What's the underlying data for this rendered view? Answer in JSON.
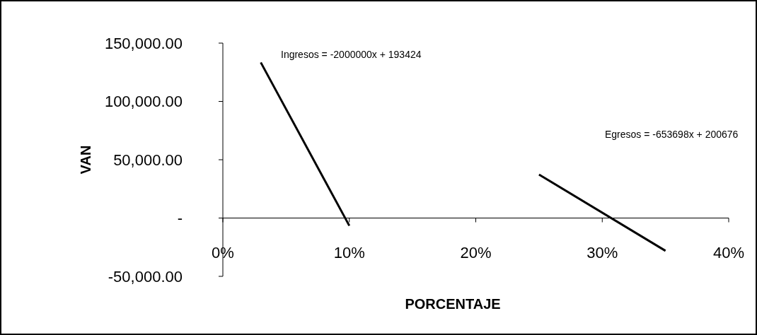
{
  "chart_data": {
    "type": "line",
    "xlabel": "PORCENTAJE",
    "ylabel": "VAN",
    "series": [
      {
        "color": "#000000",
        "x": [
          0.03,
          0.1
        ],
        "values": [
          133400,
          -6600
        ]
      },
      {
        "color": "#000000",
        "x": [
          0.25,
          0.35
        ],
        "values": [
          37300,
          -28100
        ]
      }
    ],
    "xlim": [
      0,
      0.4
    ],
    "xticks": [
      {
        "value": 0,
        "label": "0%"
      },
      {
        "value": 0.1,
        "label": "10%"
      },
      {
        "value": 0.2,
        "label": "20%"
      },
      {
        "value": 0.3,
        "label": "30%"
      },
      {
        "value": 0.4,
        "label": "40%"
      }
    ],
    "ylim": [
      -50000,
      150000
    ],
    "yticks": [
      {
        "value": -50000,
        "label": "-50,000.00"
      },
      {
        "value": 0,
        "label": "-"
      },
      {
        "value": 50000,
        "label": "50,000.00"
      },
      {
        "value": 100000,
        "label": "100,000.00"
      },
      {
        "value": 150000,
        "label": "150,000.00"
      }
    ],
    "annotations": [
      "Ingresos = -2000000x + 193424",
      "Egresos = -653698x + 200676"
    ],
    "grid": false,
    "marker": "none",
    "line_style": "solid"
  }
}
